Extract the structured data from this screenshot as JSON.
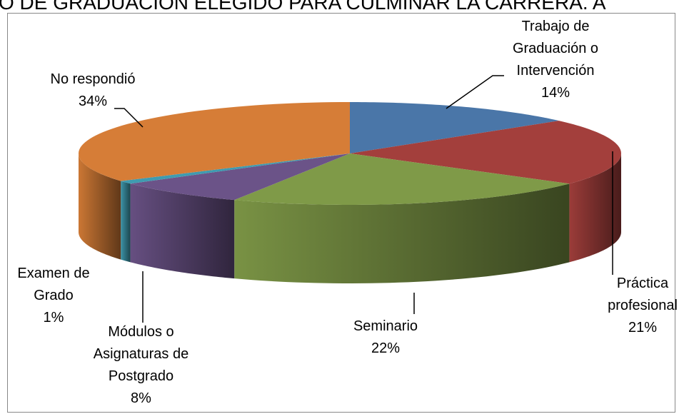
{
  "chart_data": {
    "type": "pie3d",
    "title": "O DE GRADUACIÓN ELEGIDO PARA CULMINAR LA CARRERA. A",
    "categories": [
      "Trabajo de Graduación o Intervención",
      "Práctica profesional",
      "Seminario",
      "Módulos o Asignaturas de Postgrado",
      "Examen de Grado",
      "No respondió"
    ],
    "values": [
      14,
      21,
      22,
      8,
      1,
      34
    ],
    "value_labels": [
      "14%",
      "21%",
      "22%",
      "8%",
      "1%",
      "34%"
    ],
    "colors": [
      "#4a76a8",
      "#a33f3c",
      "#7f9a48",
      "#6b5388",
      "#3f9bb0",
      "#d67d37"
    ]
  }
}
